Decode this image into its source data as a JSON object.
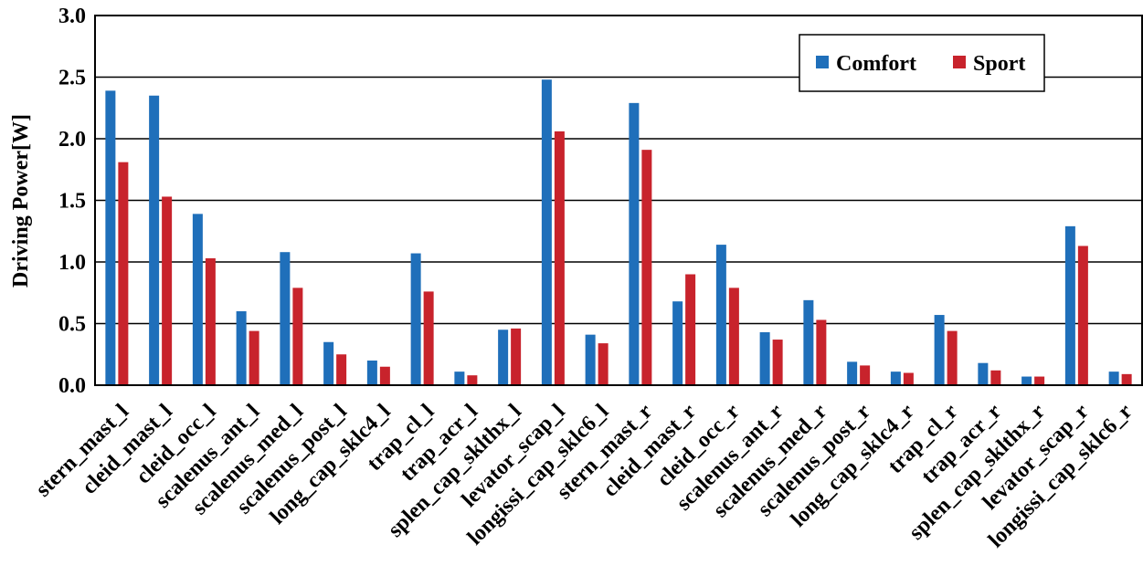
{
  "chart_data": {
    "type": "bar",
    "title": "",
    "xlabel": "",
    "ylabel": "Driving Power[W]",
    "ylim": [
      0,
      3.0
    ],
    "yticks": [
      "0.0",
      "0.5",
      "1.0",
      "1.5",
      "2.0",
      "2.5",
      "3.0"
    ],
    "grid": true,
    "legend_position": "top-right",
    "categories": [
      "stern_mast_l",
      "cleid_mast_l",
      "cleid_occ_l",
      "scalenus_ant_l",
      "scalenus_med_l",
      "scalenus_post_l",
      "long_cap_sklc4_l",
      "trap_cl_l",
      "trap_acr_l",
      "splen_cap_sklthx_l",
      "levator_scap_l",
      "longissi_cap_sklc6_l",
      "stern_mast_r",
      "cleid_mast_r",
      "cleid_occ_r",
      "scalenus_ant_r",
      "scalenus_med_r",
      "scalenus_post_r",
      "long_cap_sklc4_r",
      "trap_cl_r",
      "trap_acr_r",
      "splen_cap_sklthx_r",
      "levator_scap_r",
      "longissi_cap_sklc6_r"
    ],
    "series": [
      {
        "name": "Comfort",
        "color": "#1f6fba",
        "values": [
          2.39,
          2.35,
          1.39,
          0.6,
          1.08,
          0.35,
          0.2,
          1.07,
          0.11,
          0.45,
          2.48,
          0.41,
          2.29,
          0.68,
          1.14,
          0.43,
          0.69,
          0.19,
          0.11,
          0.57,
          0.18,
          0.07,
          1.29,
          0.11
        ]
      },
      {
        "name": "Sport",
        "color": "#c8232c",
        "values": [
          1.81,
          1.53,
          1.03,
          0.44,
          0.79,
          0.25,
          0.15,
          0.76,
          0.08,
          0.46,
          2.06,
          0.34,
          1.91,
          0.9,
          0.79,
          0.37,
          0.53,
          0.16,
          0.1,
          0.44,
          0.12,
          0.07,
          1.13,
          0.09
        ]
      }
    ]
  }
}
